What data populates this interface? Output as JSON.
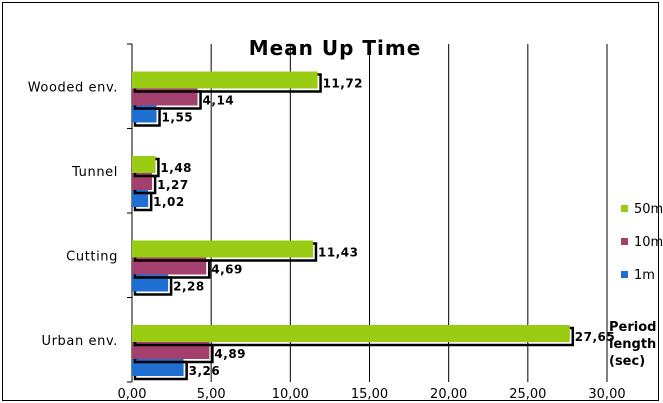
{
  "chart_data": {
    "type": "bar",
    "orientation": "horizontal",
    "title": "Mean Up Time",
    "categories": [
      "Urban env.",
      "Cutting",
      "Tunnel",
      "Wooded env."
    ],
    "series": [
      {
        "name": "1m",
        "color": "#1f6fd2",
        "values": [
          3.26,
          2.28,
          1.02,
          1.55
        ],
        "labels": [
          "3,26",
          "2,28",
          "1,02",
          "1,55"
        ]
      },
      {
        "name": "10m",
        "color": "#a3406e",
        "values": [
          4.89,
          4.69,
          1.27,
          4.14
        ],
        "labels": [
          "4,89",
          "4,69",
          "1,27",
          "4,14"
        ]
      },
      {
        "name": "50m",
        "color": "#9acc14",
        "values": [
          27.65,
          11.43,
          1.48,
          11.72
        ],
        "labels": [
          "27,65",
          "11,43",
          "1,48",
          "11,72"
        ]
      }
    ],
    "xlim": [
      0,
      30
    ],
    "x_ticks": [
      0,
      5,
      10,
      15,
      20,
      25,
      30
    ],
    "x_tick_labels": [
      "0,00",
      "5,00",
      "10,00",
      "15,00",
      "20,00",
      "25,00",
      "30,00"
    ],
    "legend_order": [
      "50m",
      "10m",
      "1m"
    ],
    "legend_position": "right",
    "annotation": [
      "Period",
      "length",
      "(sec)"
    ],
    "grid": "vertical"
  }
}
